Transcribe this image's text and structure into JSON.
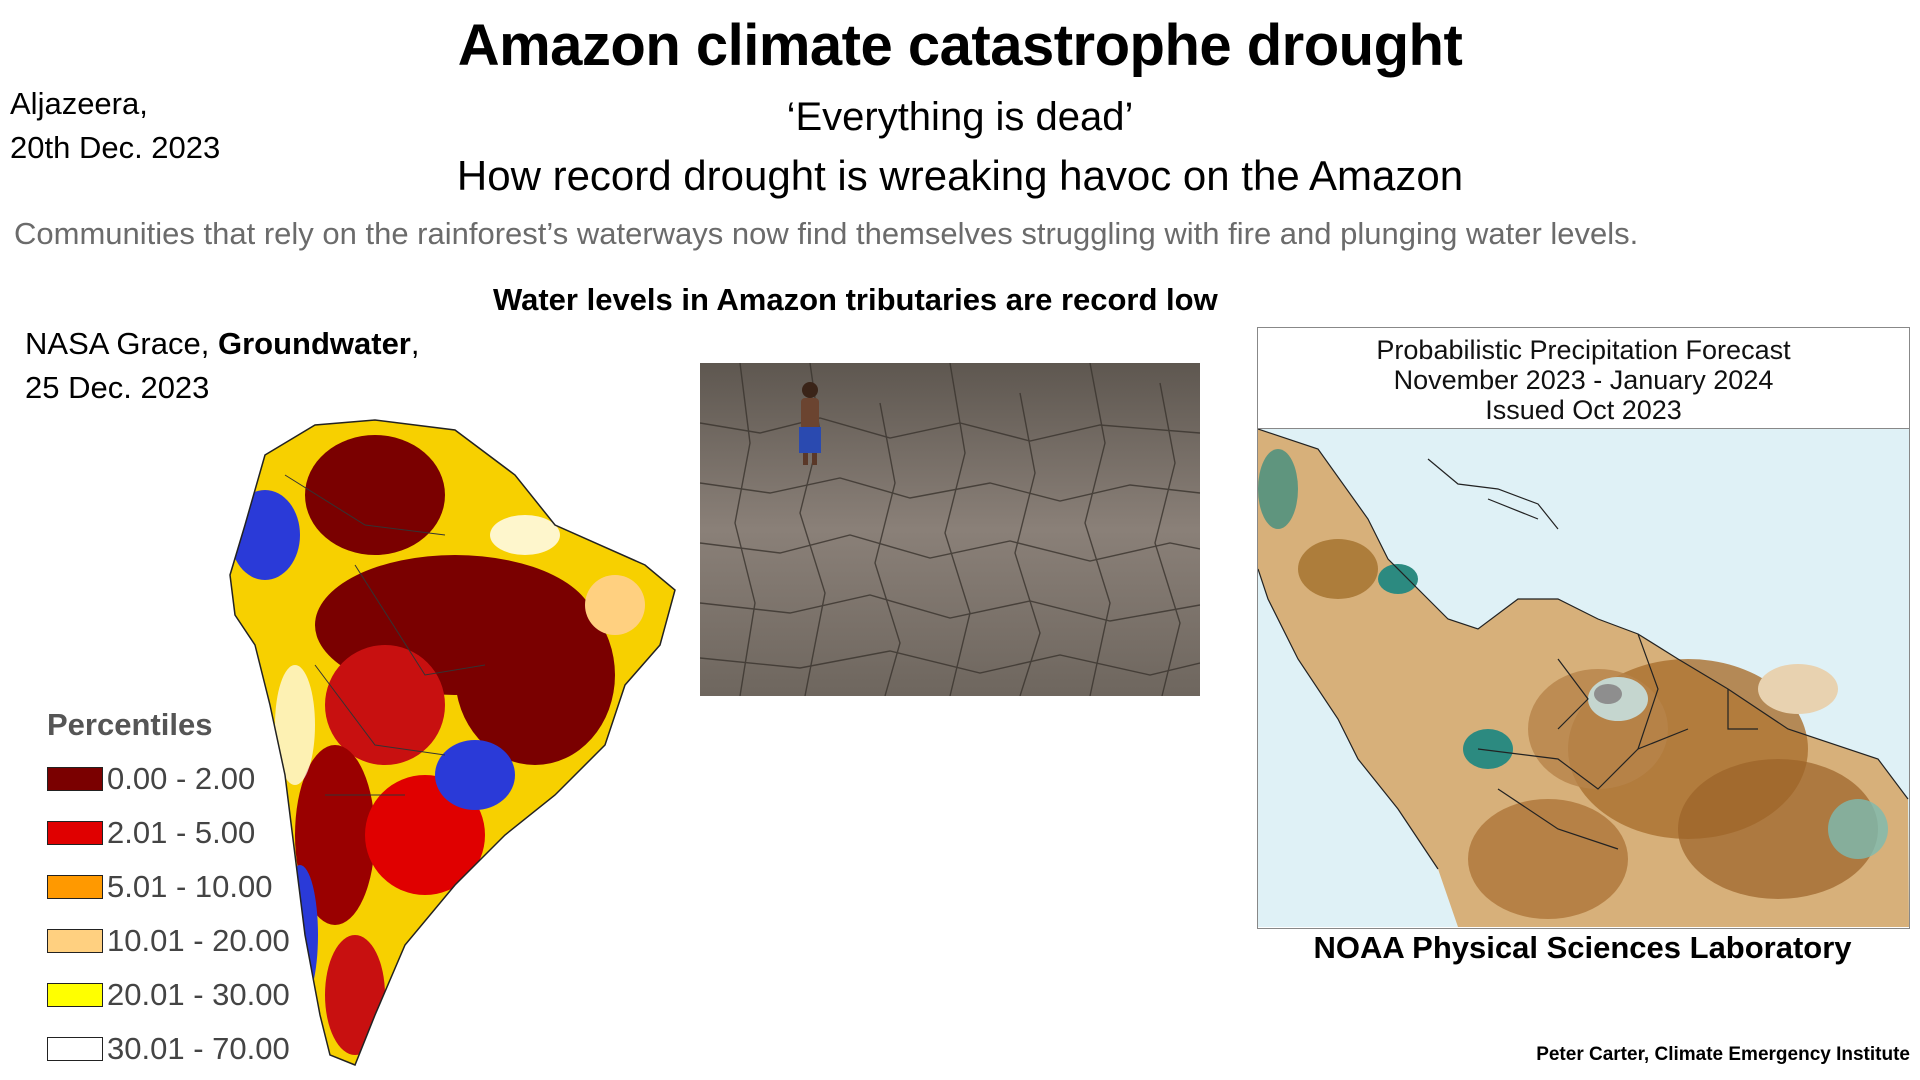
{
  "title": "Amazon climate catastrophe drought",
  "source": {
    "outlet": "Aljazeera,",
    "date": "20th Dec. 2023"
  },
  "quote": "‘Everything is dead’",
  "headline": "How record drought is wreaking havoc on the Amazon",
  "subtitle": "Communities that rely on the rainforest’s waterways now find themselves struggling with fire and plunging water levels.",
  "water_caption": "Water levels in Amazon tributaries are record low",
  "nasa": {
    "prefix": "NASA Grace, ",
    "bold": "Groundwater",
    "suffix": ",",
    "date": "25 Dec. 2023"
  },
  "legend": {
    "title": "Percentiles",
    "items": [
      {
        "label": "0.00 - 2.00",
        "color": "#7a0000"
      },
      {
        "label": "2.01 - 5.00",
        "color": "#e00000"
      },
      {
        "label": "5.01 - 10.00",
        "color": "#ff9900"
      },
      {
        "label": "10.01 - 20.00",
        "color": "#ffd080"
      },
      {
        "label": "20.01 - 30.00",
        "color": "#ffff00"
      },
      {
        "label": "30.01 - 70.00",
        "color": "#ffffff"
      }
    ]
  },
  "noaa": {
    "lines": [
      "Probabilistic Precipitation Forecast",
      "November 2023 - January 2024",
      "Issued Oct 2023"
    ],
    "caption": "NOAA Physical Sciences Laboratory"
  },
  "credit": "Peter Carter,  Climate Emergency Institute",
  "icons": {
    "photo": "drought-photo",
    "sa_map": "groundwater-map-icon",
    "noaa_map": "precipitation-map-icon"
  }
}
